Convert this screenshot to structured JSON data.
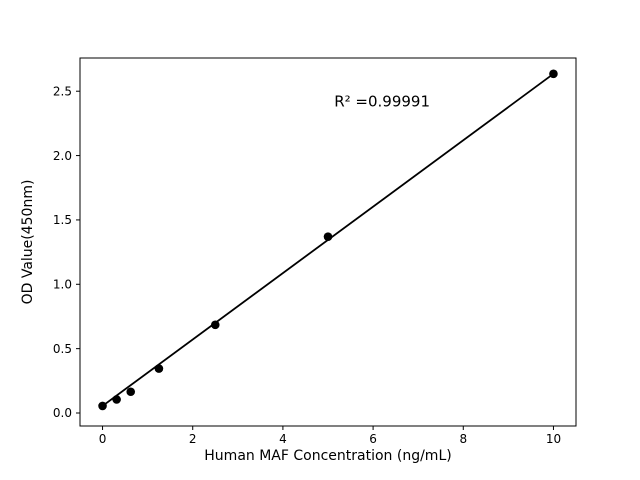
{
  "figure": {
    "description": "Standard curve scatter plot with linear fit"
  },
  "chart_data": {
    "type": "scatter",
    "title": "",
    "xlabel": "Human MAF Concentration (ng/mL)",
    "ylabel": "OD Value(450nm)",
    "x": [
      0,
      0.3125,
      0.625,
      1.25,
      2.5,
      5,
      10
    ],
    "y": [
      0.055,
      0.105,
      0.165,
      0.345,
      0.685,
      1.37,
      2.635
    ],
    "fit_line": true,
    "annotation": {
      "text": "R² =0.99991",
      "x": 6.2,
      "y": 2.42
    },
    "xticks": [
      0,
      2,
      4,
      6,
      8,
      10
    ],
    "yticks": [
      0,
      0.5,
      1.0,
      1.5,
      2.0,
      2.5
    ],
    "xlim": [
      -0.5,
      10.5
    ],
    "ylim": [
      -0.101,
      2.758
    ],
    "grid": false,
    "legend_position": "none",
    "marker_color": "#000000",
    "line_color": "#000000",
    "axis_color": "#000000",
    "background_color": "#ffffff"
  }
}
